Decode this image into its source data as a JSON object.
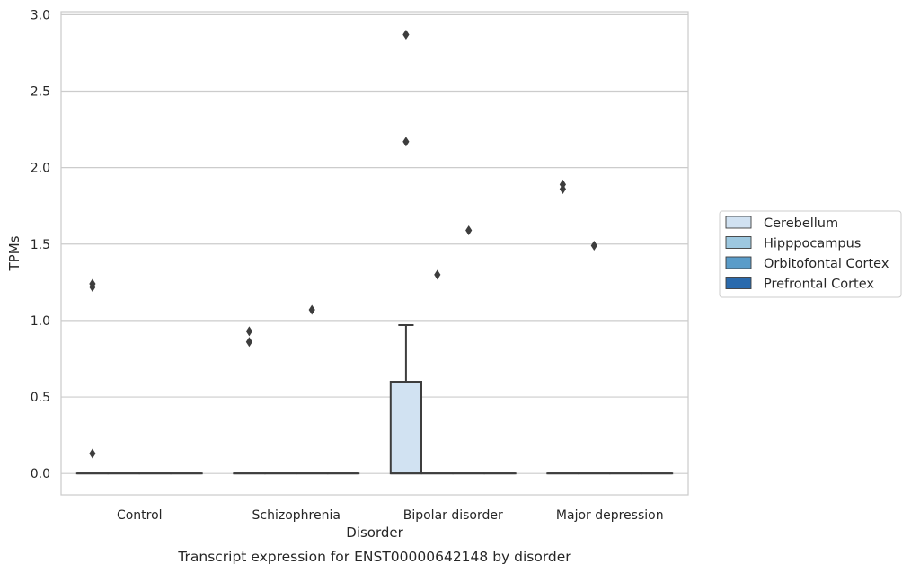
{
  "chart_data": {
    "type": "box",
    "title": "",
    "caption": "Transcript expression for ENST00000642148 by disorder",
    "xlabel": "Disorder",
    "ylabel": "TPMs",
    "ylim": [
      -0.14,
      3.02
    ],
    "yticks": [
      0.0,
      0.5,
      1.0,
      1.5,
      2.0,
      2.5,
      3.0
    ],
    "ytick_labels": [
      "0.0",
      "0.5",
      "1.0",
      "1.5",
      "2.0",
      "2.5",
      "3.0"
    ],
    "grid": "horizontal",
    "legend_position": "right",
    "categories": [
      "Control",
      "Schizophrenia",
      "Bipolar disorder",
      "Major depression"
    ],
    "series": [
      {
        "name": "Cerebellum",
        "color": "#d1e2f2",
        "boxes": [
          {
            "q1": 0,
            "median": 0,
            "q3": 0,
            "whisker_low": 0,
            "whisker_high": 0,
            "outliers": [
              1.24,
              1.22,
              0.13
            ]
          },
          {
            "q1": 0,
            "median": 0,
            "q3": 0,
            "whisker_low": 0,
            "whisker_high": 0,
            "outliers": [
              0.93,
              0.86
            ]
          },
          {
            "q1": 0,
            "median": 0,
            "q3": 0.6,
            "whisker_low": 0,
            "whisker_high": 0.97,
            "outliers": [
              2.87,
              2.17
            ]
          },
          {
            "q1": 0,
            "median": 0,
            "q3": 0,
            "whisker_low": 0,
            "whisker_high": 0,
            "outliers": [
              1.89,
              1.86
            ]
          }
        ]
      },
      {
        "name": "Hipppocampus",
        "color": "#9dc8e0",
        "boxes": [
          {
            "q1": 0,
            "median": 0,
            "q3": 0,
            "whisker_low": 0,
            "whisker_high": 0,
            "outliers": []
          },
          {
            "q1": 0,
            "median": 0,
            "q3": 0,
            "whisker_low": 0,
            "whisker_high": 0,
            "outliers": []
          },
          {
            "q1": 0,
            "median": 0,
            "q3": 0,
            "whisker_low": 0,
            "whisker_high": 0,
            "outliers": [
              1.3
            ]
          },
          {
            "q1": 0,
            "median": 0,
            "q3": 0,
            "whisker_low": 0,
            "whisker_high": 0,
            "outliers": [
              1.49
            ]
          }
        ]
      },
      {
        "name": "Orbitofontal Cortex",
        "color": "#5a9cc9",
        "boxes": [
          {
            "q1": 0,
            "median": 0,
            "q3": 0,
            "whisker_low": 0,
            "whisker_high": 0,
            "outliers": []
          },
          {
            "q1": 0,
            "median": 0,
            "q3": 0,
            "whisker_low": 0,
            "whisker_high": 0,
            "outliers": [
              1.07
            ]
          },
          {
            "q1": 0,
            "median": 0,
            "q3": 0,
            "whisker_low": 0,
            "whisker_high": 0,
            "outliers": [
              1.59
            ]
          },
          {
            "q1": 0,
            "median": 0,
            "q3": 0,
            "whisker_low": 0,
            "whisker_high": 0,
            "outliers": []
          }
        ]
      },
      {
        "name": "Prefrontal Cortex",
        "color": "#2a6aad",
        "boxes": [
          {
            "q1": 0,
            "median": 0,
            "q3": 0,
            "whisker_low": 0,
            "whisker_high": 0,
            "outliers": []
          },
          {
            "q1": 0,
            "median": 0,
            "q3": 0,
            "whisker_low": 0,
            "whisker_high": 0,
            "outliers": []
          },
          {
            "q1": 0,
            "median": 0,
            "q3": 0,
            "whisker_low": 0,
            "whisker_high": 0,
            "outliers": []
          },
          {
            "q1": 0,
            "median": 0,
            "q3": 0,
            "whisker_low": 0,
            "whisker_high": 0,
            "outliers": []
          }
        ]
      }
    ]
  }
}
